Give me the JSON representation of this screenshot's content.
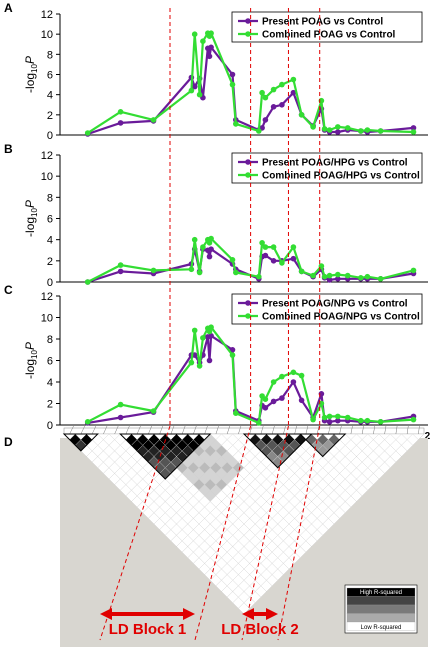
{
  "chart_data": [
    {
      "type": "line",
      "panel": "A",
      "ylabel_base": "-log",
      "ylabel_sub": "10",
      "ylabel_var": "P",
      "ylim": [
        0,
        12
      ],
      "yticks": [
        "0",
        "2",
        "4",
        "6",
        "8",
        "10",
        "12"
      ],
      "legend": "top-right",
      "series": [
        {
          "name": "Present POAG vs Control",
          "color": "#6a1b9a",
          "points": [
            [
              21930000,
              0.1
            ],
            [
              21950000,
              1.2
            ],
            [
              21970000,
              1.4
            ],
            [
              21993000,
              5.7
            ],
            [
              21995000,
              4.8
            ],
            [
              21998000,
              5.6
            ],
            [
              22000000,
              3.7
            ],
            [
              22003000,
              8.6
            ],
            [
              22004000,
              7.8
            ],
            [
              22005000,
              8.7
            ],
            [
              22018000,
              6.0
            ],
            [
              22020000,
              1.5
            ],
            [
              22034000,
              0.5
            ],
            [
              22036000,
              0.7
            ],
            [
              22038000,
              1.5
            ],
            [
              22043000,
              2.8
            ],
            [
              22048000,
              3.0
            ],
            [
              22055000,
              4.2
            ],
            [
              22060000,
              2.0
            ],
            [
              22067000,
              0.9
            ],
            [
              22072000,
              2.6
            ],
            [
              22074000,
              0.5
            ],
            [
              22077000,
              0.3
            ],
            [
              22082000,
              0.3
            ],
            [
              22088000,
              0.5
            ],
            [
              22096000,
              0.4
            ],
            [
              22100000,
              0.3
            ],
            [
              22108000,
              0.4
            ],
            [
              22128000,
              0.7
            ]
          ]
        },
        {
          "name": "Combined POAG vs Control",
          "color": "#33dd33",
          "points": [
            [
              21930000,
              0.2
            ],
            [
              21950000,
              2.3
            ],
            [
              21970000,
              1.5
            ],
            [
              21993000,
              4.4
            ],
            [
              21995000,
              10.0
            ],
            [
              21998000,
              4.0
            ],
            [
              22000000,
              9.3
            ],
            [
              22003000,
              10.1
            ],
            [
              22004000,
              9.8
            ],
            [
              22005000,
              10.1
            ],
            [
              22018000,
              5.0
            ],
            [
              22020000,
              1.1
            ],
            [
              22034000,
              0.4
            ],
            [
              22036000,
              4.2
            ],
            [
              22038000,
              3.7
            ],
            [
              22043000,
              4.5
            ],
            [
              22048000,
              5.0
            ],
            [
              22055000,
              5.5
            ],
            [
              22060000,
              2.0
            ],
            [
              22067000,
              0.8
            ],
            [
              22072000,
              3.4
            ],
            [
              22074000,
              0.6
            ],
            [
              22077000,
              0.5
            ],
            [
              22082000,
              0.8
            ],
            [
              22088000,
              0.7
            ],
            [
              22096000,
              0.4
            ],
            [
              22100000,
              0.5
            ],
            [
              22108000,
              0.4
            ],
            [
              22128000,
              0.3
            ]
          ]
        }
      ]
    },
    {
      "type": "line",
      "panel": "B",
      "ylabel_base": "-log",
      "ylabel_sub": "10",
      "ylabel_var": "P",
      "ylim": [
        0,
        12
      ],
      "yticks": [
        "0",
        "2",
        "4",
        "6",
        "8",
        "10",
        "12"
      ],
      "legend": "top-right",
      "series": [
        {
          "name": "Present POAG/HPG vs Control",
          "color": "#6a1b9a",
          "points": [
            [
              21930000,
              0.0
            ],
            [
              21950000,
              1.0
            ],
            [
              21970000,
              0.8
            ],
            [
              21993000,
              1.7
            ],
            [
              21995000,
              3.1
            ],
            [
              21998000,
              1.0
            ],
            [
              22000000,
              3.1
            ],
            [
              22003000,
              3.0
            ],
            [
              22004000,
              2.4
            ],
            [
              22005000,
              3.1
            ],
            [
              22018000,
              1.7
            ],
            [
              22020000,
              1.2
            ],
            [
              22034000,
              0.3
            ],
            [
              22036000,
              2.4
            ],
            [
              22038000,
              2.5
            ],
            [
              22043000,
              2.0
            ],
            [
              22048000,
              2.0
            ],
            [
              22055000,
              2.2
            ],
            [
              22060000,
              1.0
            ],
            [
              22067000,
              0.5
            ],
            [
              22072000,
              1.2
            ],
            [
              22074000,
              0.4
            ],
            [
              22077000,
              0.2
            ],
            [
              22082000,
              0.3
            ],
            [
              22088000,
              0.3
            ],
            [
              22096000,
              0.3
            ],
            [
              22100000,
              0.3
            ],
            [
              22108000,
              0.3
            ],
            [
              22128000,
              0.8
            ]
          ]
        },
        {
          "name": "Combined POAG/HPG vs Control",
          "color": "#33dd33",
          "points": [
            [
              21930000,
              0.0
            ],
            [
              21950000,
              1.6
            ],
            [
              21970000,
              1.1
            ],
            [
              21993000,
              1.2
            ],
            [
              21995000,
              4.0
            ],
            [
              21998000,
              0.9
            ],
            [
              22000000,
              3.3
            ],
            [
              22003000,
              4.0
            ],
            [
              22004000,
              3.7
            ],
            [
              22005000,
              4.1
            ],
            [
              22018000,
              2.1
            ],
            [
              22020000,
              0.9
            ],
            [
              22034000,
              0.5
            ],
            [
              22036000,
              3.7
            ],
            [
              22038000,
              3.3
            ],
            [
              22043000,
              3.3
            ],
            [
              22048000,
              1.8
            ],
            [
              22055000,
              3.3
            ],
            [
              22060000,
              1.0
            ],
            [
              22067000,
              0.6
            ],
            [
              22072000,
              1.5
            ],
            [
              22074000,
              0.5
            ],
            [
              22077000,
              0.6
            ],
            [
              22082000,
              0.7
            ],
            [
              22088000,
              0.6
            ],
            [
              22096000,
              0.4
            ],
            [
              22100000,
              0.5
            ],
            [
              22108000,
              0.3
            ],
            [
              22128000,
              1.1
            ]
          ]
        }
      ]
    },
    {
      "type": "line",
      "panel": "C",
      "ylabel_base": "-log",
      "ylabel_sub": "10",
      "ylabel_var": "P",
      "ylim": [
        0,
        12
      ],
      "yticks": [
        "0",
        "2",
        "4",
        "6",
        "8",
        "10",
        "12"
      ],
      "legend": "top-right",
      "x_tick_labels": [
        "21,950,000",
        "22,000,000",
        "22,050,000",
        "22,100,000",
        "22,150,000"
      ],
      "x_tick_values": [
        21950000,
        22000000,
        22050000,
        22100000,
        22150000
      ],
      "series": [
        {
          "name": "Present POAG/NPG vs Control",
          "color": "#6a1b9a",
          "points": [
            [
              21930000,
              0.2
            ],
            [
              21950000,
              0.7
            ],
            [
              21970000,
              1.2
            ],
            [
              21993000,
              6.5
            ],
            [
              21995000,
              6.5
            ],
            [
              21998000,
              5.8
            ],
            [
              22000000,
              6.5
            ],
            [
              22003000,
              8.2
            ],
            [
              22004000,
              6.0
            ],
            [
              22005000,
              8.3
            ],
            [
              22018000,
              7.0
            ],
            [
              22020000,
              1.3
            ],
            [
              22034000,
              0.4
            ],
            [
              22036000,
              1.8
            ],
            [
              22038000,
              1.6
            ],
            [
              22043000,
              2.2
            ],
            [
              22048000,
              2.5
            ],
            [
              22055000,
              4.0
            ],
            [
              22060000,
              2.3
            ],
            [
              22067000,
              0.7
            ],
            [
              22072000,
              2.9
            ],
            [
              22074000,
              0.4
            ],
            [
              22077000,
              0.3
            ],
            [
              22082000,
              0.4
            ],
            [
              22088000,
              0.4
            ],
            [
              22096000,
              0.3
            ],
            [
              22100000,
              0.3
            ],
            [
              22108000,
              0.3
            ],
            [
              22128000,
              0.8
            ]
          ]
        },
        {
          "name": "Combined POAG/NPG vs Control",
          "color": "#33dd33",
          "points": [
            [
              21930000,
              0.3
            ],
            [
              21950000,
              1.9
            ],
            [
              21970000,
              1.3
            ],
            [
              21993000,
              5.8
            ],
            [
              21995000,
              8.8
            ],
            [
              21998000,
              5.5
            ],
            [
              22000000,
              8.1
            ],
            [
              22003000,
              9.0
            ],
            [
              22004000,
              8.7
            ],
            [
              22005000,
              9.1
            ],
            [
              22018000,
              6.5
            ],
            [
              22020000,
              1.1
            ],
            [
              22034000,
              0.2
            ],
            [
              22036000,
              2.7
            ],
            [
              22038000,
              2.4
            ],
            [
              22043000,
              4.0
            ],
            [
              22048000,
              4.5
            ],
            [
              22055000,
              4.9
            ],
            [
              22060000,
              4.6
            ],
            [
              22067000,
              0.5
            ],
            [
              22072000,
              2.0
            ],
            [
              22074000,
              0.7
            ],
            [
              22077000,
              0.8
            ],
            [
              22082000,
              0.8
            ],
            [
              22088000,
              0.7
            ],
            [
              22096000,
              0.4
            ],
            [
              22100000,
              0.4
            ],
            [
              22108000,
              0.3
            ],
            [
              22128000,
              0.5
            ]
          ]
        }
      ]
    }
  ],
  "x_domain": [
    21918000,
    22135000
  ],
  "block_boundaries": [
    21980000,
    22029000,
    22052000,
    22071000
  ],
  "ld_panel": {
    "letter": "D",
    "blocks": [
      {
        "label": "LD Block 1",
        "from": 21980000,
        "to": 22029000
      },
      {
        "label": "LD Block 2",
        "from": 22052000,
        "to": 22071000
      }
    ],
    "legend_high": "High R-squared",
    "legend_low": "Low R-squared",
    "legend_shades": [
      "#000000",
      "#444444",
      "#7a7a7a",
      "#aaaaaa",
      "#ffffff"
    ]
  }
}
